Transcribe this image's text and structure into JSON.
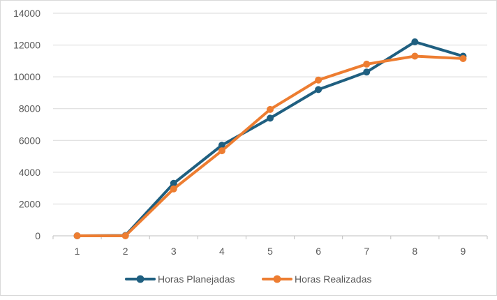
{
  "chart_data": {
    "type": "line",
    "title": "",
    "xlabel": "",
    "ylabel": "",
    "categories": [
      "1",
      "2",
      "3",
      "4",
      "5",
      "6",
      "7",
      "8",
      "9"
    ],
    "yticks": [
      "0",
      "2000",
      "4000",
      "6000",
      "8000",
      "10000",
      "12000",
      "14000"
    ],
    "ylim": [
      0,
      14000
    ],
    "grid": "horizontal",
    "legend_position": "bottom",
    "series": [
      {
        "name": "Horas Planejadas",
        "color": "#1f5f80",
        "values": [
          0,
          20,
          3300,
          5700,
          7400,
          9200,
          10300,
          12200,
          11300
        ]
      },
      {
        "name": "Horas Realizadas",
        "color": "#ed7d31",
        "values": [
          0,
          0,
          2950,
          5350,
          7950,
          9800,
          10800,
          11300,
          11150
        ]
      }
    ]
  }
}
